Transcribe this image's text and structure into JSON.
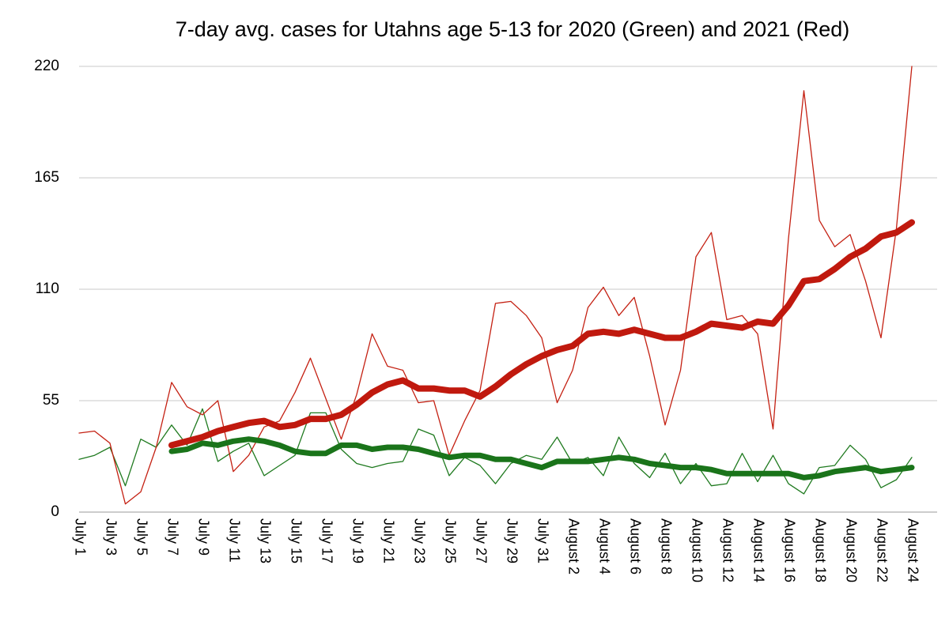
{
  "chart_data": {
    "type": "line",
    "title": "7-day avg. cases for Utahns age 5-13 for 2020 (Green) and 2021 (Red)",
    "categories": [
      "July 1",
      null,
      "July 3",
      null,
      "July 5",
      null,
      "July 7",
      null,
      "July 9",
      null,
      "July 11",
      null,
      "July 13",
      null,
      "July 15",
      null,
      "July 17",
      null,
      "July 19",
      null,
      "July 21",
      null,
      "July 23",
      null,
      "July 25",
      null,
      "July 27",
      null,
      "July 29",
      null,
      "July 31",
      null,
      "August 2",
      null,
      "August 4",
      null,
      "August 6",
      null,
      "August 8",
      null,
      "August 10",
      null,
      "August 12",
      null,
      "August 14",
      null,
      "August 16",
      null,
      "August 18",
      null,
      "August 20",
      null,
      "August 22",
      null,
      "August 24"
    ],
    "series": [
      {
        "color": "#1f7a1f",
        "values": [
          26,
          28,
          32,
          13,
          36,
          32,
          43,
          33,
          51,
          25,
          30,
          34,
          18,
          23,
          28,
          49,
          49,
          31,
          24,
          22,
          24,
          25,
          41,
          38,
          18,
          27,
          23,
          14,
          24,
          28,
          26,
          37,
          24,
          27,
          18,
          37,
          24,
          17,
          29,
          14,
          24,
          13,
          14,
          29,
          15,
          28,
          14,
          9,
          22,
          23,
          33,
          26,
          12,
          16,
          27
        ]
      },
      {
        "color": "#c42012",
        "values": [
          39,
          40,
          34,
          4,
          10,
          32,
          64,
          52,
          48,
          55,
          20,
          28,
          42,
          45,
          59,
          76,
          56,
          36,
          58,
          88,
          72,
          70,
          54,
          55,
          28,
          45,
          60,
          103,
          104,
          97,
          86,
          54,
          70,
          101,
          111,
          97,
          106,
          77,
          43,
          70,
          126,
          138,
          95,
          97,
          88,
          41,
          135,
          208,
          144,
          131,
          137,
          114,
          86,
          140,
          220
        ]
      },
      {
        "color": "#1a741a",
        "values": [
          null,
          null,
          null,
          null,
          null,
          null,
          30,
          31,
          34,
          33,
          35,
          36,
          35,
          33,
          30,
          29,
          29,
          33,
          33,
          31,
          32,
          32,
          31,
          29,
          27,
          28,
          28,
          26,
          26,
          24,
          22,
          25,
          25,
          25,
          26,
          27,
          26,
          24,
          23,
          22,
          22,
          21,
          19,
          19,
          19,
          19,
          19,
          17,
          18,
          20,
          21,
          22,
          20,
          21,
          22
        ]
      },
      {
        "color": "#c0190e",
        "values": [
          null,
          null,
          null,
          null,
          null,
          null,
          33,
          35,
          37,
          40,
          42,
          44,
          45,
          42,
          43,
          46,
          46,
          48,
          53,
          59,
          63,
          65,
          61,
          61,
          60,
          60,
          57,
          62,
          68,
          73,
          77,
          80,
          82,
          88,
          89,
          88,
          90,
          88,
          86,
          86,
          89,
          93,
          92,
          91,
          94,
          93,
          102,
          114,
          115,
          120,
          126,
          130,
          136,
          138,
          143
        ]
      }
    ],
    "ylim": [
      0,
      220
    ],
    "yticks": [
      0,
      55,
      110,
      165,
      220
    ],
    "grid": true
  }
}
